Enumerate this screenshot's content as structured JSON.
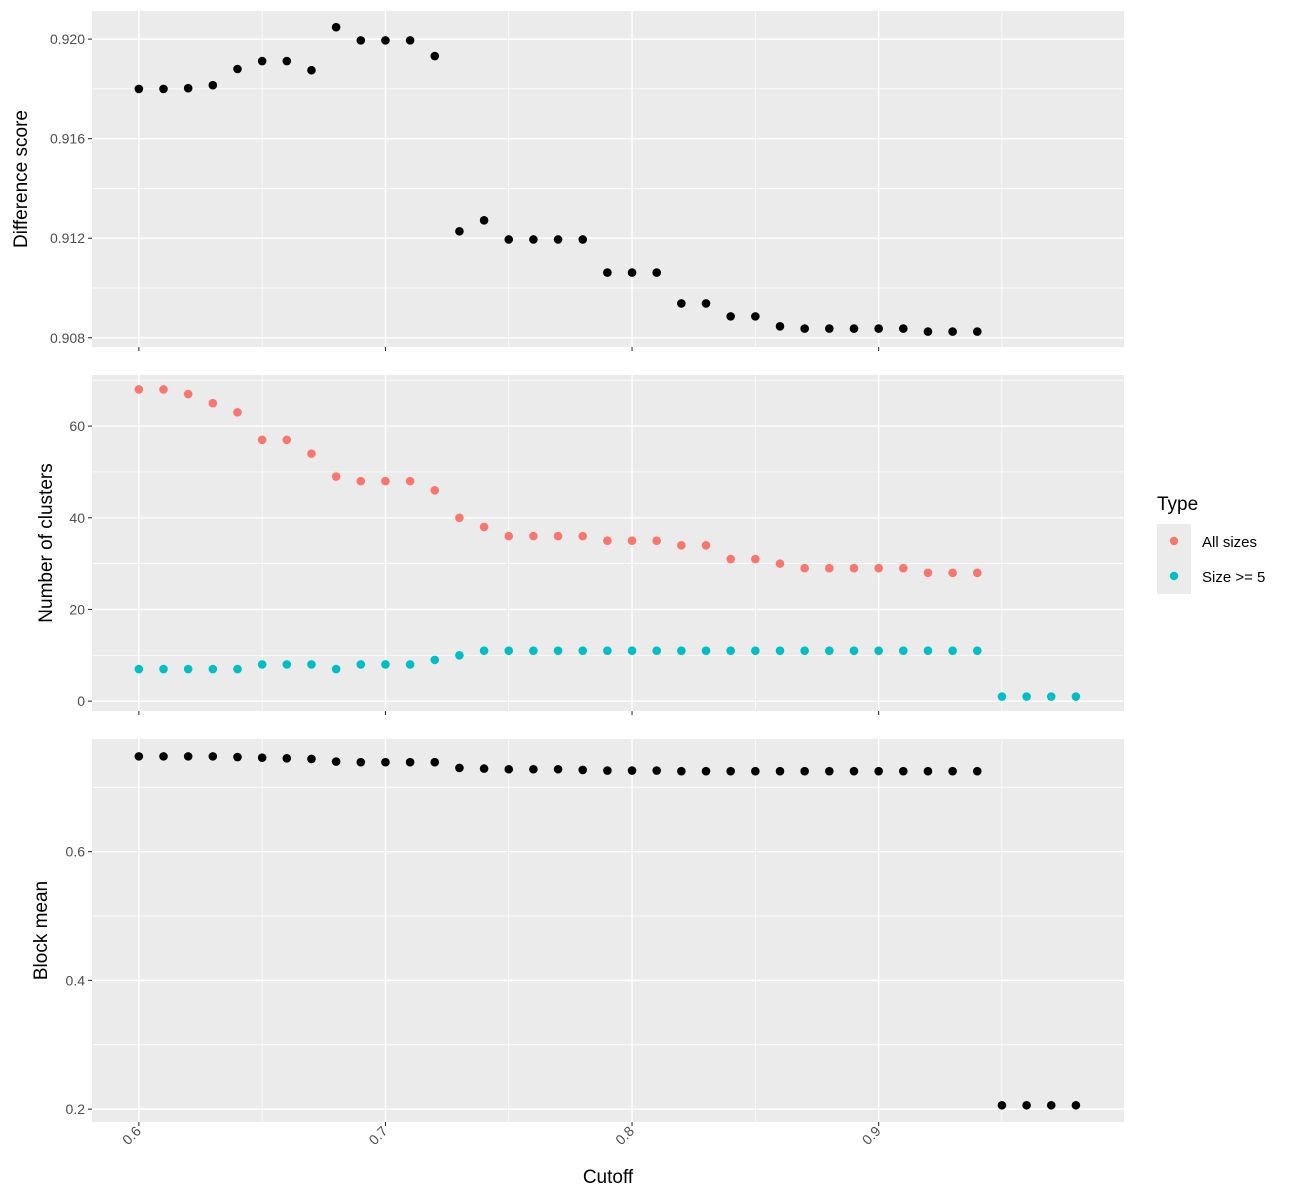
{
  "chart_data": [
    {
      "type": "scatter",
      "ylabel": "Difference score",
      "xlabel": "",
      "xlim": [
        0.581,
        0.9995
      ],
      "ylim": [
        0.90763,
        0.92113
      ],
      "yticks": [
        0.908,
        0.912,
        0.916,
        0.92
      ],
      "ytick_labels": [
        "0.908",
        "0.912",
        "0.916",
        "0.920"
      ],
      "grid": true,
      "color": "#000000",
      "x": [
        0.6,
        0.61,
        0.62,
        0.63,
        0.64,
        0.65,
        0.66,
        0.67,
        0.68,
        0.69,
        0.7,
        0.71,
        0.72,
        0.73,
        0.74,
        0.75,
        0.76,
        0.77,
        0.78,
        0.79,
        0.8,
        0.81,
        0.82,
        0.83,
        0.84,
        0.85,
        0.86,
        0.87,
        0.88,
        0.89,
        0.9,
        0.91,
        0.92,
        0.93,
        0.94
      ],
      "y": [
        0.918,
        0.918,
        0.91803,
        0.91815,
        0.9188,
        0.91912,
        0.91912,
        0.91875,
        0.92048,
        0.91995,
        0.91995,
        0.91995,
        0.91932,
        0.91228,
        0.91272,
        0.91195,
        0.91195,
        0.91195,
        0.91195,
        0.91062,
        0.91062,
        0.91062,
        0.90938,
        0.90938,
        0.90886,
        0.90886,
        0.90846,
        0.90837,
        0.90837,
        0.90837,
        0.90837,
        0.90837,
        0.90825,
        0.90825,
        0.90825
      ]
    },
    {
      "type": "scatter",
      "ylabel": "Number of clusters",
      "xlabel": "",
      "xlim": [
        0.581,
        0.9995
      ],
      "ylim": [
        -2.15,
        71.15
      ],
      "yticks": [
        0,
        20,
        40,
        60
      ],
      "ytick_labels": [
        "0",
        "20",
        "40",
        "60"
      ],
      "grid": true,
      "legend": {
        "title": "Type",
        "placement": "right",
        "entries": [
          {
            "label": "All sizes",
            "color": "#F8766D"
          },
          {
            "label": "Size >= 5",
            "color": "#00BFC4"
          }
        ]
      },
      "series": [
        {
          "name": "All sizes",
          "color": "#F8766D",
          "x": [
            0.6,
            0.61,
            0.62,
            0.63,
            0.64,
            0.65,
            0.66,
            0.67,
            0.68,
            0.69,
            0.7,
            0.71,
            0.72,
            0.73,
            0.74,
            0.75,
            0.76,
            0.77,
            0.78,
            0.79,
            0.8,
            0.81,
            0.82,
            0.83,
            0.84,
            0.85,
            0.86,
            0.87,
            0.88,
            0.89,
            0.9,
            0.91,
            0.92,
            0.93,
            0.94
          ],
          "y": [
            68,
            68,
            67,
            65,
            63,
            57,
            57,
            54,
            49,
            48,
            48,
            48,
            46,
            40,
            38,
            36,
            36,
            36,
            36,
            35,
            35,
            35,
            34,
            34,
            31,
            31,
            30,
            29,
            29,
            29,
            29,
            29,
            28,
            28,
            28
          ]
        },
        {
          "name": "Size >= 5",
          "color": "#00BFC4",
          "x": [
            0.6,
            0.61,
            0.62,
            0.63,
            0.64,
            0.65,
            0.66,
            0.67,
            0.68,
            0.69,
            0.7,
            0.71,
            0.72,
            0.73,
            0.74,
            0.75,
            0.76,
            0.77,
            0.78,
            0.79,
            0.8,
            0.81,
            0.82,
            0.83,
            0.84,
            0.85,
            0.86,
            0.87,
            0.88,
            0.89,
            0.9,
            0.91,
            0.92,
            0.93,
            0.94,
            0.95,
            0.96,
            0.97,
            0.98
          ],
          "y": [
            7,
            7,
            7,
            7,
            7,
            8,
            8,
            8,
            7,
            8,
            8,
            8,
            9,
            10,
            11,
            11,
            11,
            11,
            11,
            11,
            11,
            11,
            11,
            11,
            11,
            11,
            11,
            11,
            11,
            11,
            11,
            11,
            11,
            11,
            11,
            1,
            1,
            1,
            1
          ]
        }
      ]
    },
    {
      "type": "scatter",
      "ylabel": "Block mean",
      "xlabel": "Cutoff",
      "xlim": [
        0.581,
        0.9995
      ],
      "xticks": [
        0.6,
        0.7,
        0.8,
        0.9
      ],
      "xtick_labels": [
        "0.6",
        "0.7",
        "0.8",
        "0.9"
      ],
      "ylim": [
        0.18,
        0.775
      ],
      "yticks": [
        0.2,
        0.4,
        0.6
      ],
      "ytick_labels": [
        "0.2",
        "0.4",
        "0.6"
      ],
      "grid": true,
      "color": "#000000",
      "x": [
        0.6,
        0.61,
        0.62,
        0.63,
        0.64,
        0.65,
        0.66,
        0.67,
        0.68,
        0.69,
        0.7,
        0.71,
        0.72,
        0.73,
        0.74,
        0.75,
        0.76,
        0.77,
        0.78,
        0.79,
        0.8,
        0.81,
        0.82,
        0.83,
        0.84,
        0.85,
        0.86,
        0.87,
        0.88,
        0.89,
        0.9,
        0.91,
        0.92,
        0.93,
        0.94,
        0.95,
        0.96,
        0.97,
        0.98
      ],
      "y": [
        0.748,
        0.748,
        0.748,
        0.748,
        0.747,
        0.746,
        0.745,
        0.744,
        0.74,
        0.739,
        0.739,
        0.739,
        0.739,
        0.73,
        0.729,
        0.728,
        0.728,
        0.728,
        0.727,
        0.726,
        0.726,
        0.726,
        0.725,
        0.725,
        0.725,
        0.725,
        0.725,
        0.725,
        0.725,
        0.725,
        0.725,
        0.725,
        0.725,
        0.725,
        0.725,
        0.206,
        0.206,
        0.206,
        0.206
      ]
    }
  ]
}
